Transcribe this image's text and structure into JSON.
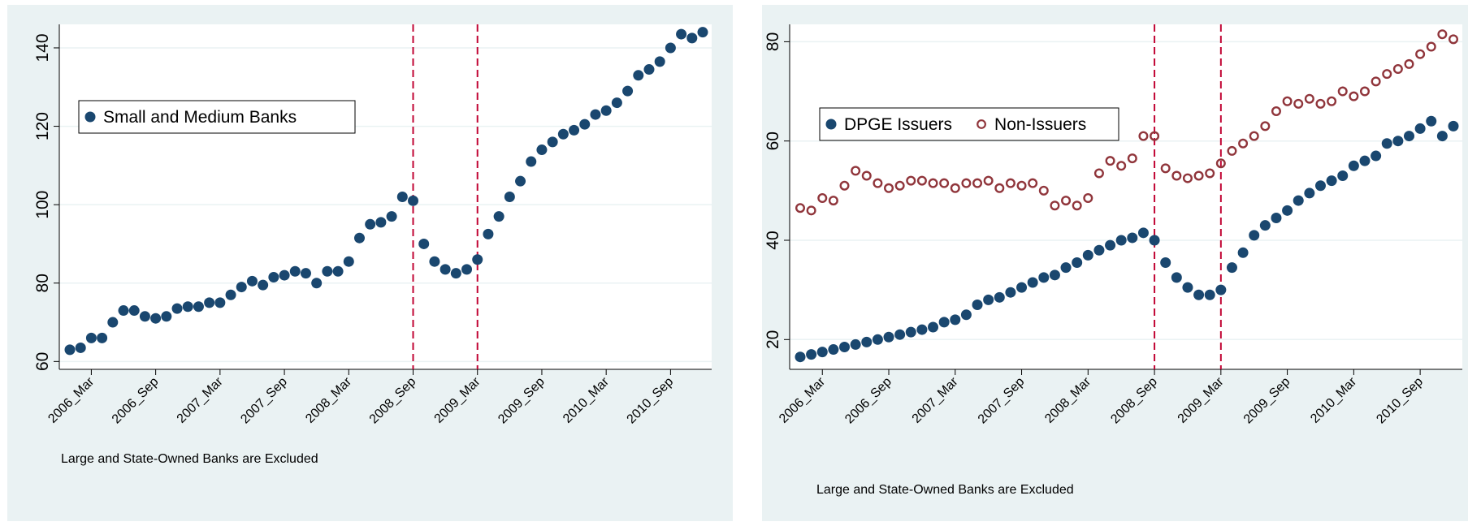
{
  "chart_data": [
    {
      "type": "scatter",
      "categories": [
        null,
        null,
        "2006_Mar",
        null,
        null,
        null,
        null,
        null,
        "2006_Sep",
        null,
        null,
        null,
        null,
        null,
        "2007_Mar",
        null,
        null,
        null,
        null,
        null,
        "2007_Sep",
        null,
        null,
        null,
        null,
        null,
        "2008_Mar",
        null,
        null,
        null,
        null,
        null,
        "2008_Sep",
        null,
        null,
        null,
        null,
        null,
        "2009_Mar",
        null,
        null,
        null,
        null,
        null,
        "2009_Sep",
        null,
        null,
        null,
        null,
        null,
        "2010_Mar",
        null,
        null,
        null,
        null,
        null,
        "2010_Sep",
        null,
        null,
        null
      ],
      "series": [
        {
          "name": "Small and Medium Banks",
          "color": "#1a476f",
          "marker": "filled",
          "values": [
            63,
            63.5,
            66,
            66,
            70,
            73,
            73,
            71.5,
            71,
            71.5,
            73.5,
            74,
            74,
            75,
            75,
            77,
            79,
            80.5,
            79.5,
            81.5,
            82,
            83,
            82.5,
            80,
            83,
            83,
            85.5,
            91.5,
            95,
            95.5,
            97,
            102,
            101,
            90,
            85.5,
            83.5,
            82.5,
            83.5,
            86,
            92.5,
            97,
            102,
            106,
            111,
            114,
            116,
            118,
            119,
            120.5,
            123,
            124,
            126,
            129,
            133,
            134.5,
            136.5,
            140,
            143.5,
            142.5,
            144
          ]
        }
      ],
      "ylim": [
        58,
        146
      ],
      "yticks": [
        60,
        80,
        100,
        120,
        140
      ],
      "grid": true,
      "reference_lines": [
        "2008_Sep",
        "2009_Mar"
      ],
      "reference_color": "#c10534",
      "legend": "upper left",
      "note": "Large and State-Owned Banks are Excluded"
    },
    {
      "type": "scatter",
      "categories": [
        null,
        null,
        "2006_Mar",
        null,
        null,
        null,
        null,
        null,
        "2006_Sep",
        null,
        null,
        null,
        null,
        null,
        "2007_Mar",
        null,
        null,
        null,
        null,
        null,
        "2007_Sep",
        null,
        null,
        null,
        null,
        null,
        "2008_Mar",
        null,
        null,
        null,
        null,
        null,
        "2008_Sep",
        null,
        null,
        null,
        null,
        null,
        "2009_Mar",
        null,
        null,
        null,
        null,
        null,
        "2009_Sep",
        null,
        null,
        null,
        null,
        null,
        "2010_Mar",
        null,
        null,
        null,
        null,
        null,
        "2010_Sep",
        null,
        null,
        null
      ],
      "series": [
        {
          "name": "DPGE Issuers",
          "color": "#1a476f",
          "marker": "filled",
          "values": [
            16.5,
            17,
            17.5,
            18,
            18.5,
            19,
            19.5,
            20,
            20.5,
            21,
            21.5,
            22,
            22.5,
            23.5,
            24,
            25,
            27,
            28,
            28.5,
            29.5,
            30.5,
            31.5,
            32.5,
            33,
            34.5,
            35.5,
            37,
            38,
            39,
            40,
            40.5,
            41.5,
            40,
            35.5,
            32.5,
            30.5,
            29,
            29,
            30,
            34.5,
            37.5,
            41,
            43,
            44.5,
            46,
            48,
            49.5,
            51,
            52,
            53,
            55,
            56,
            57,
            59.5,
            60,
            61,
            62.5,
            64,
            61,
            63
          ]
        },
        {
          "name": "Non-Issuers",
          "color": "#90353b",
          "marker": "hollow",
          "values": [
            46.5,
            46,
            48.5,
            48,
            51,
            54,
            53,
            51.5,
            50.5,
            51,
            52,
            52,
            51.5,
            51.5,
            50.5,
            51.5,
            51.5,
            52,
            50.5,
            51.5,
            51,
            51.5,
            50,
            47,
            48,
            47,
            48.5,
            53.5,
            56,
            55,
            56.5,
            61,
            61,
            54.5,
            53,
            52.5,
            53,
            53.5,
            55.5,
            58,
            59.5,
            61,
            63,
            66,
            68,
            67.5,
            68.5,
            67.5,
            68,
            70,
            69,
            70,
            72,
            73.5,
            74.5,
            75.5,
            77.5,
            79,
            81.5,
            80.5
          ]
        }
      ],
      "ylim": [
        14,
        83.5
      ],
      "yticks": [
        20,
        40,
        60,
        80
      ],
      "grid": true,
      "reference_lines": [
        "2008_Sep",
        "2009_Mar"
      ],
      "reference_color": "#c10534",
      "legend": "upper left",
      "note": "Large and State-Owned Banks are Excluded"
    }
  ]
}
